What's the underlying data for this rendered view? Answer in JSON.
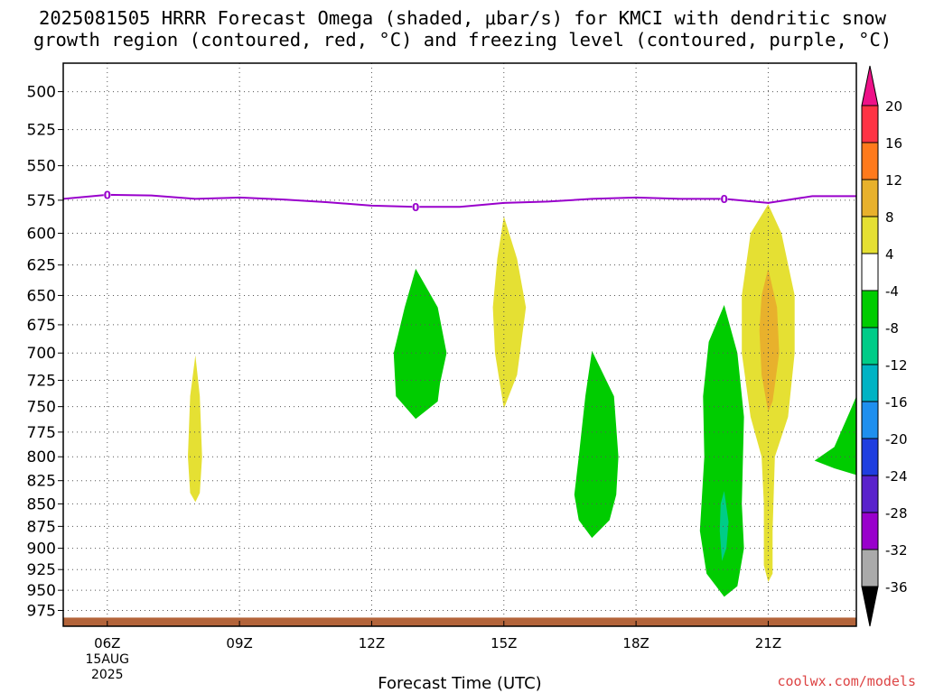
{
  "chart_data": {
    "type": "heatmap",
    "title_lines": [
      "2025081505 HRRR Forecast Omega (shaded, μbar/s) for KMCI with dendritic snow",
      "growth region (contoured, red, °C) and freezing level (contoured, purple, °C)"
    ],
    "xlabel": "Forecast Time (UTC)",
    "ylabel": "",
    "x_ticks": [
      {
        "t": 6,
        "label": "06Z",
        "sub": [
          "15AUG",
          "2025"
        ]
      },
      {
        "t": 9,
        "label": "09Z"
      },
      {
        "t": 12,
        "label": "12Z"
      },
      {
        "t": 15,
        "label": "15Z"
      },
      {
        "t": 18,
        "label": "18Z"
      },
      {
        "t": 21,
        "label": "21Z"
      }
    ],
    "x_range_hours": [
      5,
      23
    ],
    "y_ticks": [
      500,
      525,
      550,
      575,
      600,
      625,
      650,
      675,
      700,
      725,
      750,
      775,
      800,
      825,
      850,
      875,
      900,
      925,
      950,
      975
    ],
    "y_range_hpa": [
      482,
      995
    ],
    "y_scale": "log-pressure (inverted)",
    "grid": true,
    "colorbar": {
      "labels": [
        "20",
        "16",
        "12",
        "8",
        "4",
        "-4",
        "-8",
        "-12",
        "-16",
        "-20",
        "-24",
        "-28",
        "-32",
        "-36"
      ],
      "colors": [
        "#ff3344",
        "#ff7a1c",
        "#e8b12c",
        "#e5e033",
        "#ffffff",
        "#00cc00",
        "#00cc88",
        "#00b3c4",
        "#1f8fee",
        "#1f3ee0",
        "#5a22cc",
        "#9900cc",
        "#aaaaaa"
      ],
      "top_arrow_color": "#ee1188",
      "bottom_arrow_color": "#000000"
    },
    "freezing_level": {
      "label": "0",
      "color": "#9900cc",
      "points": [
        [
          5,
          574
        ],
        [
          6,
          571
        ],
        [
          7,
          571.5
        ],
        [
          8,
          574
        ],
        [
          9,
          573
        ],
        [
          10,
          574.5
        ],
        [
          11,
          576.5
        ],
        [
          12,
          579
        ],
        [
          13,
          580
        ],
        [
          14,
          580
        ],
        [
          15,
          577
        ],
        [
          16,
          576
        ],
        [
          17,
          574
        ],
        [
          18,
          573
        ],
        [
          19,
          574
        ],
        [
          20,
          574
        ],
        [
          21,
          577
        ],
        [
          22,
          572
        ],
        [
          23,
          572
        ]
      ],
      "label_positions": [
        [
          6,
          571
        ],
        [
          13,
          580
        ],
        [
          20,
          574
        ]
      ]
    },
    "omega_regions": [
      {
        "value_range": "4 to 8",
        "color": "#e5e033",
        "points": [
          [
            8.0,
            702
          ],
          [
            8.1,
            740
          ],
          [
            8.15,
            800
          ],
          [
            8.1,
            838
          ],
          [
            8.0,
            848
          ],
          [
            7.88,
            838
          ],
          [
            7.83,
            800
          ],
          [
            7.88,
            740
          ]
        ]
      },
      {
        "value_range": "-4 to -8",
        "color": "#00cc00",
        "points": [
          [
            13.0,
            628
          ],
          [
            13.5,
            660
          ],
          [
            13.7,
            700
          ],
          [
            13.55,
            728
          ],
          [
            13.5,
            745
          ],
          [
            13.0,
            762
          ],
          [
            12.55,
            740
          ],
          [
            12.5,
            700
          ],
          [
            12.75,
            660
          ]
        ]
      },
      {
        "value_range": "4 to 8",
        "color": "#e5e033",
        "points": [
          [
            15.0,
            587
          ],
          [
            15.3,
            620
          ],
          [
            15.5,
            660
          ],
          [
            15.3,
            720
          ],
          [
            15.0,
            752
          ],
          [
            14.8,
            700
          ],
          [
            14.75,
            660
          ],
          [
            14.85,
            620
          ]
        ]
      },
      {
        "value_range": "-4 to -8",
        "color": "#00cc00",
        "points": [
          [
            17.0,
            698
          ],
          [
            17.5,
            740
          ],
          [
            17.6,
            800
          ],
          [
            17.55,
            840
          ],
          [
            17.4,
            868
          ],
          [
            17.0,
            888
          ],
          [
            16.7,
            868
          ],
          [
            16.6,
            840
          ],
          [
            16.7,
            800
          ],
          [
            16.85,
            740
          ]
        ]
      },
      {
        "value_range": "-4 to -8",
        "color": "#00cc00",
        "points": [
          [
            20.0,
            658
          ],
          [
            20.3,
            700
          ],
          [
            20.45,
            760
          ],
          [
            20.4,
            850
          ],
          [
            20.45,
            900
          ],
          [
            20.3,
            945
          ],
          [
            20.0,
            958
          ],
          [
            19.6,
            930
          ],
          [
            19.45,
            880
          ],
          [
            19.55,
            800
          ],
          [
            19.52,
            740
          ],
          [
            19.65,
            690
          ]
        ]
      },
      {
        "value_range": "-8 to -12",
        "color": "#00cc88",
        "points": [
          [
            20.0,
            836
          ],
          [
            20.1,
            870
          ],
          [
            20.05,
            900
          ],
          [
            19.95,
            915
          ],
          [
            19.9,
            880
          ],
          [
            19.92,
            850
          ]
        ]
      },
      {
        "value_range": "4 to 8",
        "color": "#e5e033",
        "points": [
          [
            21.0,
            578
          ],
          [
            21.3,
            600
          ],
          [
            21.6,
            650
          ],
          [
            21.6,
            700
          ],
          [
            21.45,
            760
          ],
          [
            21.15,
            800
          ],
          [
            21.1,
            880
          ],
          [
            21.1,
            930
          ],
          [
            21.0,
            940
          ],
          [
            20.9,
            920
          ],
          [
            20.9,
            850
          ],
          [
            20.85,
            800
          ],
          [
            20.6,
            760
          ],
          [
            20.4,
            700
          ],
          [
            20.4,
            650
          ],
          [
            20.6,
            600
          ]
        ]
      },
      {
        "value_range": "8 to 12",
        "color": "#e8b12c",
        "points": [
          [
            21.0,
            628
          ],
          [
            21.2,
            660
          ],
          [
            21.25,
            700
          ],
          [
            21.1,
            745
          ],
          [
            21.0,
            755
          ],
          [
            20.85,
            720
          ],
          [
            20.8,
            680
          ],
          [
            20.85,
            650
          ]
        ]
      },
      {
        "value_range": "-4 to -8",
        "color": "#00cc00",
        "points": [
          [
            23.0,
            740
          ],
          [
            23.0,
            819
          ],
          [
            22.5,
            812
          ],
          [
            22.05,
            804
          ],
          [
            22.5,
            790
          ],
          [
            22.85,
            755
          ]
        ]
      }
    ],
    "terrain": {
      "label": "surface",
      "color": "#b3643a",
      "pressure_hpa": 984
    }
  },
  "credit": "coolwx.com/models"
}
